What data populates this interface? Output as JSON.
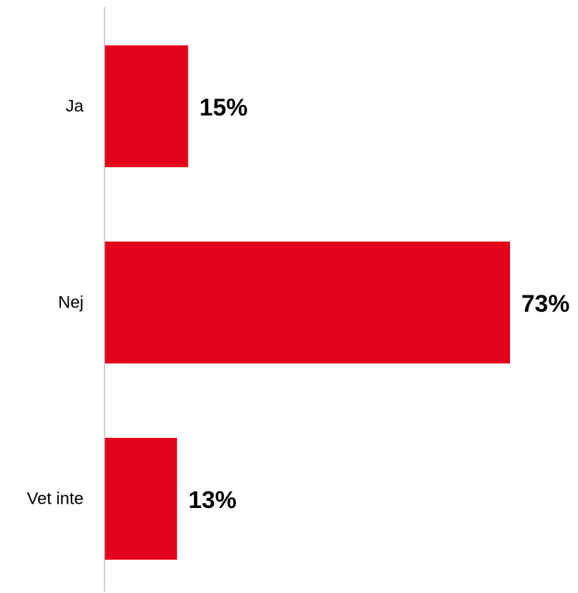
{
  "chart_data": {
    "type": "bar",
    "orientation": "horizontal",
    "categories": [
      "Ja",
      "Nej",
      "Vet inte"
    ],
    "values": [
      15,
      73,
      13
    ],
    "value_labels": [
      "15%",
      "73%",
      "13%"
    ],
    "unit": "%",
    "title": "",
    "xlabel": "",
    "ylabel": "",
    "xlim": [
      0,
      73
    ],
    "grid": false,
    "legend": "none",
    "bar_color": "#E2001A",
    "axis_color": "#BFBFBF"
  }
}
